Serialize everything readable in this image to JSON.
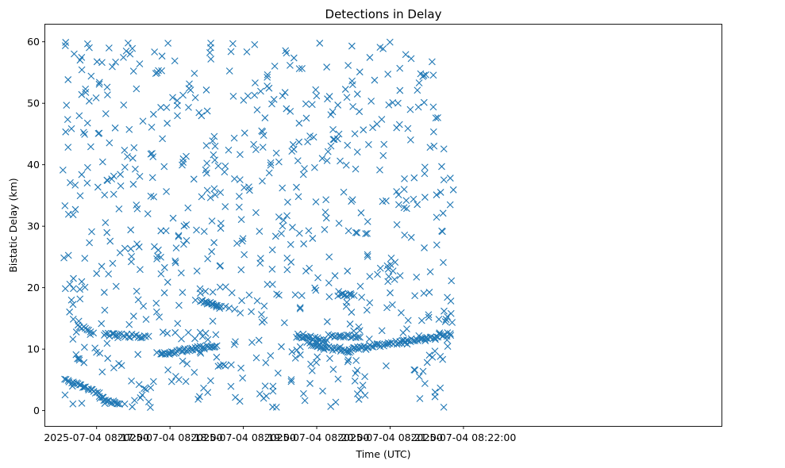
{
  "chart_data": {
    "type": "scatter",
    "title": "Detections in Delay",
    "xlabel": "Time (UTC)",
    "ylabel": "Bistatic Delay (km)",
    "x_unit": "seconds after 2025-07-04 08:16:30 UTC",
    "xlim": [
      -12,
      541
    ],
    "ylim": [
      -2.5,
      62.8
    ],
    "x_ticks": [
      {
        "value": 30,
        "label": "2025-07-04 08:17:00"
      },
      {
        "value": 90,
        "label": "2025-07-04 08:18:00"
      },
      {
        "value": 150,
        "label": "2025-07-04 08:19:00"
      },
      {
        "value": 210,
        "label": "2025-07-04 08:20:00"
      },
      {
        "value": 270,
        "label": "2025-07-04 08:21:00"
      },
      {
        "value": 330,
        "label": "2025-07-04 08:22:00"
      }
    ],
    "y_ticks": [
      0,
      10,
      20,
      30,
      40,
      50,
      60
    ],
    "marker": "x",
    "color": "#1f77b4",
    "grid": false,
    "noise_seed": 7,
    "noise_count": 720,
    "noise_x_range": [
      2,
      322
    ],
    "noise_y_range": [
      0.5,
      60
    ],
    "tracks": [
      {
        "x0": 4,
        "x1": 32,
        "y0": 5.2,
        "y1": 2.8,
        "n": 22
      },
      {
        "x0": 32,
        "x1": 49,
        "y0": 2.2,
        "y1": 0.9,
        "n": 16
      },
      {
        "x0": 15,
        "x1": 27,
        "y0": 14.0,
        "y1": 12.6,
        "n": 9
      },
      {
        "x0": 36,
        "x1": 72,
        "y0": 12.4,
        "y1": 12.0,
        "n": 24
      },
      {
        "x0": 82,
        "x1": 128,
        "y0": 9.2,
        "y1": 10.6,
        "n": 40
      },
      {
        "x0": 115,
        "x1": 132,
        "y0": 17.8,
        "y1": 16.8,
        "n": 18
      },
      {
        "x0": 195,
        "x1": 218,
        "y0": 12.2,
        "y1": 11.3,
        "n": 24
      },
      {
        "x0": 205,
        "x1": 237,
        "y0": 10.8,
        "y1": 9.5,
        "n": 26
      },
      {
        "x0": 220,
        "x1": 245,
        "y0": 12.3,
        "y1": 12.0,
        "n": 18
      },
      {
        "x0": 235,
        "x1": 320,
        "y0": 9.8,
        "y1": 12.5,
        "n": 64
      },
      {
        "x0": 228,
        "x1": 240,
        "y0": 19.2,
        "y1": 18.6,
        "n": 10
      }
    ]
  }
}
